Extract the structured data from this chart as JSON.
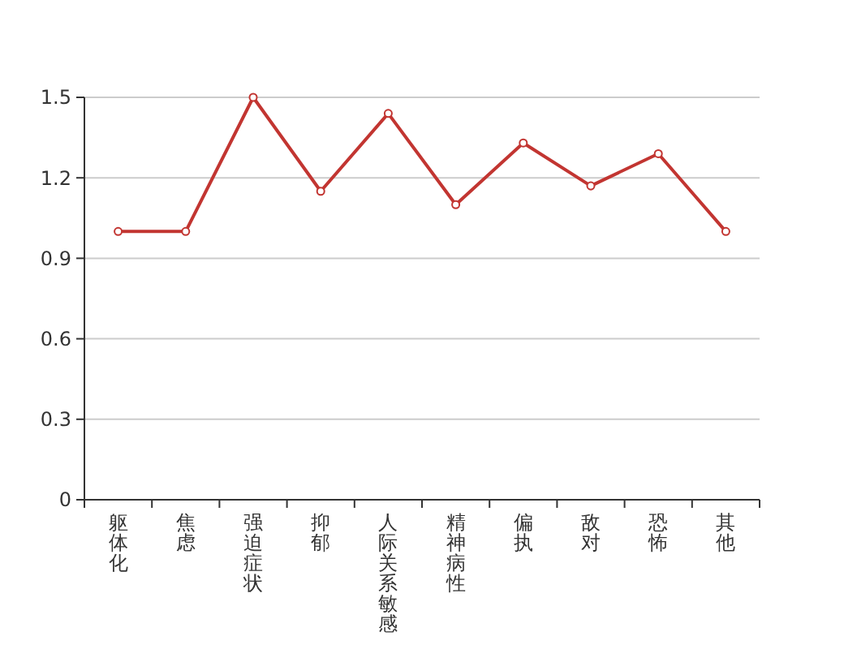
{
  "chart_data": {
    "type": "line",
    "categories": [
      "躯体化",
      "焦虑",
      "强迫症状",
      "抑郁",
      "人际关系敏感",
      "精神病性",
      "偏执",
      "敌对",
      "恐怖",
      "其他"
    ],
    "series": [
      {
        "color": "#c23531",
        "values": [
          1.0,
          1.0,
          1.5,
          1.15,
          1.44,
          1.1,
          1.33,
          1.17,
          1.29,
          1.0
        ]
      }
    ],
    "ylim": [
      0,
      1.5
    ],
    "yticks": [
      0,
      0.3,
      0.6,
      0.9,
      1.2,
      1.5
    ],
    "grid": "y",
    "marker": "circle",
    "line_style": "solid"
  }
}
